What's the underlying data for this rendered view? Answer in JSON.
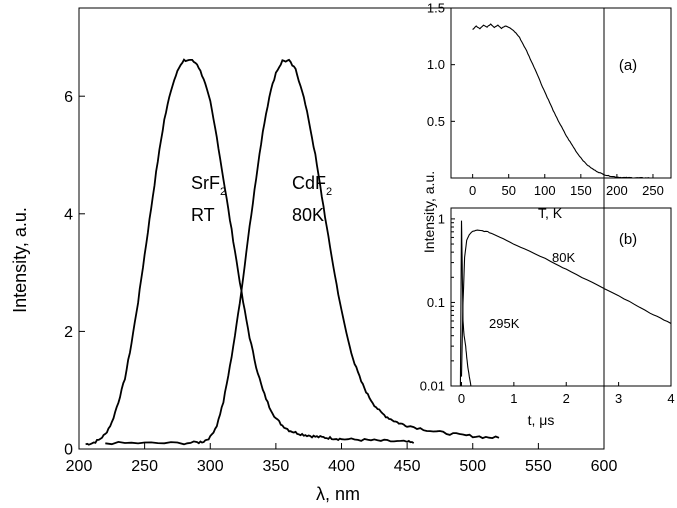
{
  "chart_data": [
    {
      "type": "line",
      "xlabel": "λ, nm",
      "ylabel": "Intensity, a.u.",
      "xlim": [
        200,
        600
      ],
      "ylim": [
        0,
        7.5
      ],
      "x_ticks": [
        200,
        250,
        300,
        350,
        400,
        450,
        500,
        550,
        600
      ],
      "y_ticks": [
        0,
        2,
        4,
        6
      ],
      "grid": false,
      "series": [
        {
          "name": "SrF2 RT",
          "label_main": "SrF",
          "label_sub": "2",
          "label_line2": "RT",
          "x": [
            205,
            210,
            215,
            220,
            225,
            230,
            235,
            240,
            245,
            250,
            255,
            260,
            265,
            270,
            275,
            280,
            285,
            290,
            295,
            300,
            305,
            310,
            315,
            320,
            325,
            330,
            335,
            340,
            345,
            350,
            355,
            360,
            365,
            370,
            375,
            380,
            385,
            390,
            395,
            400,
            410,
            420,
            430,
            440,
            450,
            455
          ],
          "y": [
            0.08,
            0.1,
            0.15,
            0.25,
            0.45,
            0.8,
            1.2,
            1.8,
            2.5,
            3.3,
            4.1,
            4.9,
            5.6,
            6.1,
            6.45,
            6.6,
            6.62,
            6.55,
            6.3,
            5.9,
            5.3,
            4.6,
            3.9,
            3.2,
            2.5,
            1.9,
            1.4,
            1.0,
            0.72,
            0.52,
            0.4,
            0.32,
            0.28,
            0.25,
            0.23,
            0.21,
            0.2,
            0.19,
            0.18,
            0.17,
            0.16,
            0.15,
            0.14,
            0.13,
            0.12,
            0.1
          ]
        },
        {
          "name": "CdF2 80K",
          "label_main": "CdF",
          "label_sub": "2",
          "label_line2": "80K",
          "x": [
            220,
            240,
            260,
            280,
            290,
            295,
            300,
            305,
            310,
            315,
            320,
            325,
            330,
            335,
            340,
            345,
            350,
            355,
            360,
            365,
            370,
            375,
            380,
            385,
            390,
            395,
            400,
            405,
            410,
            415,
            420,
            425,
            430,
            435,
            440,
            445,
            450,
            460,
            470,
            480,
            490,
            500,
            510,
            520
          ],
          "y": [
            0.1,
            0.1,
            0.1,
            0.1,
            0.11,
            0.13,
            0.2,
            0.4,
            0.8,
            1.4,
            2.1,
            2.9,
            3.8,
            4.6,
            5.4,
            6.0,
            6.4,
            6.6,
            6.6,
            6.45,
            6.1,
            5.6,
            5.0,
            4.3,
            3.6,
            2.95,
            2.35,
            1.85,
            1.45,
            1.15,
            0.92,
            0.75,
            0.62,
            0.54,
            0.48,
            0.43,
            0.4,
            0.35,
            0.3,
            0.27,
            0.24,
            0.22,
            0.2,
            0.19
          ]
        }
      ]
    },
    {
      "type": "line",
      "annotation": "(a)",
      "xlabel": "T, K",
      "ylabel": "",
      "xlim": [
        -30,
        275
      ],
      "ylim": [
        0,
        1.5
      ],
      "x_ticks": [
        0,
        50,
        100,
        150,
        200,
        250
      ],
      "y_ticks": [
        0.5,
        1.0,
        1.5
      ],
      "y_tick_labels": [
        "0.5",
        "1.0",
        "1.5"
      ],
      "series": [
        {
          "x": [
            0,
            5,
            10,
            15,
            20,
            25,
            30,
            35,
            40,
            45,
            50,
            55,
            60,
            65,
            70,
            75,
            80,
            85,
            90,
            95,
            100,
            105,
            110,
            115,
            120,
            125,
            130,
            135,
            140,
            145,
            150,
            155,
            160,
            165,
            170,
            175,
            180,
            185,
            190,
            195,
            200,
            205,
            210,
            215,
            220,
            225,
            230,
            235,
            240,
            245
          ],
          "y": [
            1.31,
            1.34,
            1.32,
            1.35,
            1.33,
            1.36,
            1.33,
            1.35,
            1.32,
            1.34,
            1.33,
            1.31,
            1.28,
            1.24,
            1.18,
            1.12,
            1.05,
            0.98,
            0.91,
            0.83,
            0.76,
            0.69,
            0.62,
            0.55,
            0.49,
            0.43,
            0.37,
            0.32,
            0.27,
            0.22,
            0.18,
            0.14,
            0.11,
            0.085,
            0.065,
            0.05,
            0.035,
            0.025,
            0.018,
            0.012,
            0.008,
            0.005,
            0.004,
            0.003,
            0.002,
            0.002,
            0.001,
            0.001,
            0.001,
            0.001
          ]
        }
      ]
    },
    {
      "type": "line",
      "annotation": "(b)",
      "xlabel": "t, μs",
      "ylabel": "",
      "xlim": [
        -0.2,
        4
      ],
      "ylim": [
        0.01,
        1.35
      ],
      "yscale": "log",
      "x_ticks": [
        0,
        1,
        2,
        3,
        4
      ],
      "y_ticks": [
        0.01,
        0.1,
        1
      ],
      "y_tick_labels": [
        "0.01",
        "0.1",
        "1"
      ],
      "series": [
        {
          "name": "80K",
          "x": [
            0.0,
            0.03,
            0.06,
            0.1,
            0.15,
            0.2,
            0.25,
            0.3,
            0.4,
            0.5,
            0.6,
            0.8,
            1.0,
            1.2,
            1.5,
            1.8,
            2.0,
            2.3,
            2.6,
            3.0,
            3.3,
            3.6,
            3.8,
            4.0
          ],
          "y": [
            0.013,
            0.1,
            0.35,
            0.55,
            0.65,
            0.7,
            0.72,
            0.73,
            0.72,
            0.7,
            0.66,
            0.58,
            0.5,
            0.44,
            0.36,
            0.29,
            0.25,
            0.2,
            0.16,
            0.12,
            0.095,
            0.075,
            0.065,
            0.056
          ]
        },
        {
          "name": "295K",
          "x": [
            -0.02,
            0.0,
            0.01,
            0.02,
            0.03,
            0.05,
            0.08,
            0.1,
            0.12,
            0.15,
            0.18
          ],
          "y": [
            0.01,
            0.95,
            0.4,
            0.15,
            0.06,
            0.04,
            0.03,
            0.022,
            0.017,
            0.013,
            0.01
          ]
        }
      ]
    }
  ]
}
